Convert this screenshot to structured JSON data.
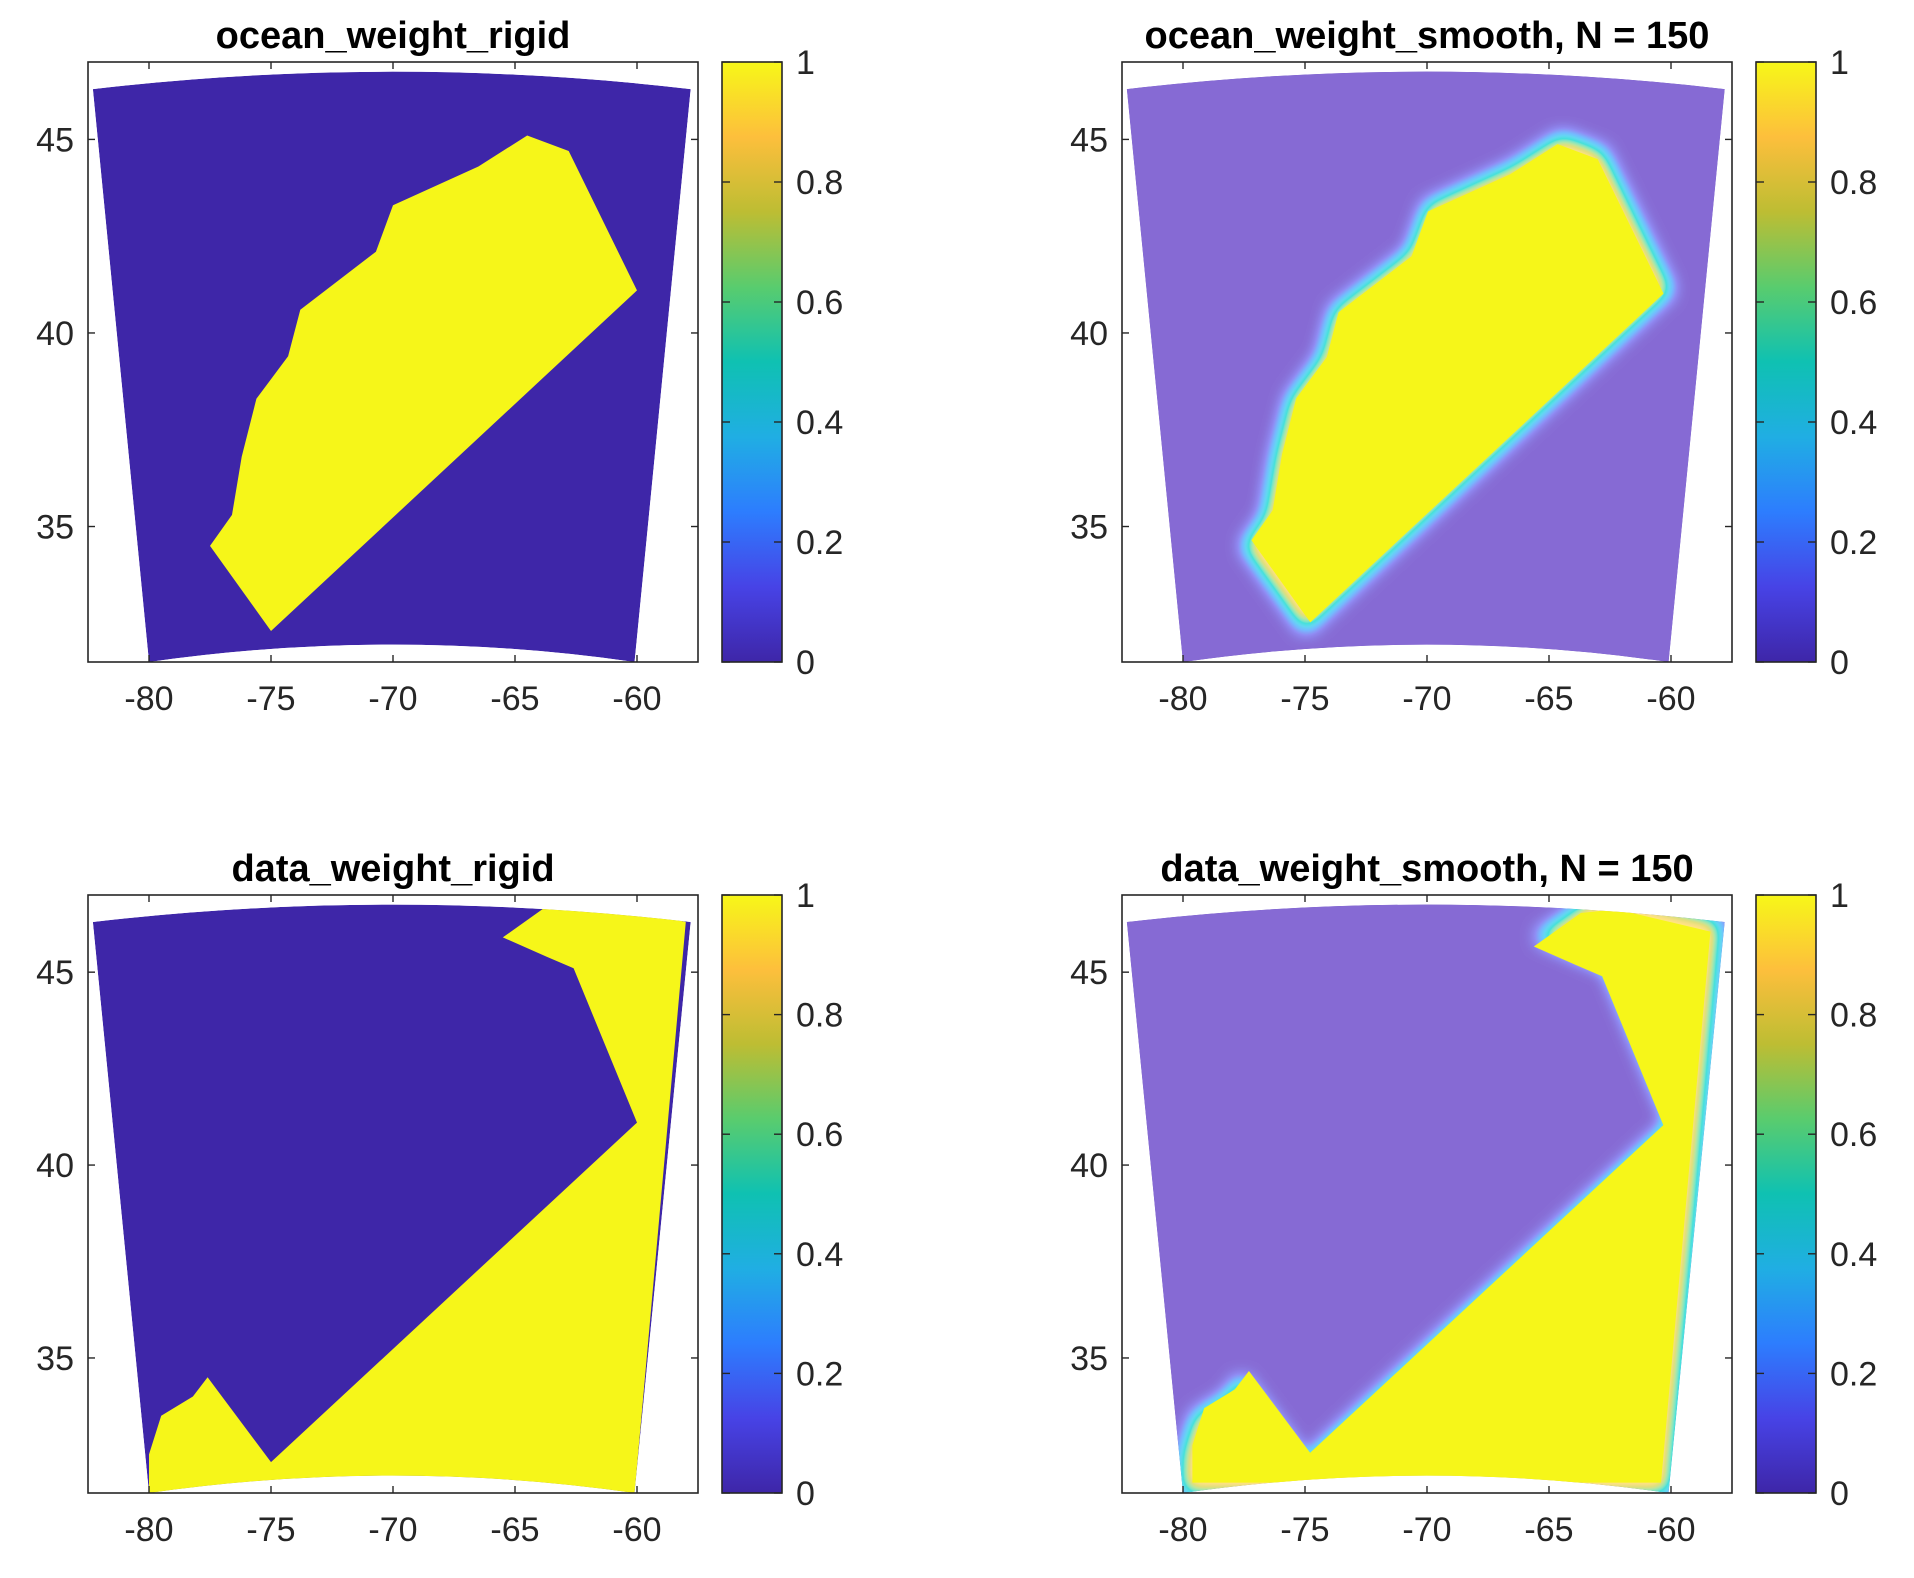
{
  "figure": {
    "colormap": [
      "#3e26a8",
      "#4743e6",
      "#2d7dfe",
      "#20aee3",
      "#0fc1b2",
      "#59cc6e",
      "#bdbd33",
      "#fdbf3c",
      "#f7f718"
    ],
    "ocean_color": "#3e26a8",
    "land_color": "#f6f619"
  },
  "chart_data": [
    {
      "type": "heatmap",
      "panel": "top-left",
      "title": "ocean_weight_rigid",
      "x_ticks": [
        "-80",
        "-75",
        "-70",
        "-65",
        "-60"
      ],
      "y_ticks": [
        "45",
        "40",
        "35"
      ],
      "xlim": [
        -82.5,
        -57.5
      ],
      "ylim": [
        31.5,
        47
      ],
      "colorbar": {
        "ticks": [
          "1",
          "0.8",
          "0.6",
          "0.4",
          "0.2",
          "0"
        ],
        "range": [
          0,
          1
        ]
      },
      "background": 0,
      "region_value": 1,
      "region": [
        [
          -77.5,
          34.5
        ],
        [
          -75,
          32.3
        ],
        [
          -60,
          41.1
        ],
        [
          -62.8,
          44.7
        ],
        [
          -64.5,
          45.1
        ],
        [
          -66.5,
          44.3
        ],
        [
          -70,
          43.3
        ],
        [
          -70.7,
          42.1
        ],
        [
          -73.8,
          40.6
        ],
        [
          -74.3,
          39.4
        ],
        [
          -75.6,
          38.3
        ],
        [
          -76.2,
          36.8
        ],
        [
          -76.6,
          35.3
        ]
      ],
      "smooth": false
    },
    {
      "type": "heatmap",
      "panel": "top-right",
      "title": "ocean_weight_smooth, N = 150",
      "x_ticks": [
        "-80",
        "-75",
        "-70",
        "-65",
        "-60"
      ],
      "y_ticks": [
        "45",
        "40",
        "35"
      ],
      "xlim": [
        -82.5,
        -57.5
      ],
      "ylim": [
        31.5,
        47
      ],
      "colorbar": {
        "ticks": [
          "1",
          "0.8",
          "0.6",
          "0.4",
          "0.2",
          "0"
        ],
        "range": [
          0,
          1
        ]
      },
      "background": 0,
      "region_value": 1,
      "region": [
        [
          -77.5,
          34.5
        ],
        [
          -75,
          32.3
        ],
        [
          -60,
          41.1
        ],
        [
          -62.8,
          44.7
        ],
        [
          -64.5,
          45.1
        ],
        [
          -66.5,
          44.3
        ],
        [
          -70,
          43.3
        ],
        [
          -70.7,
          42.1
        ],
        [
          -73.8,
          40.6
        ],
        [
          -74.3,
          39.4
        ],
        [
          -75.6,
          38.3
        ],
        [
          -76.2,
          36.8
        ],
        [
          -76.6,
          35.3
        ]
      ],
      "smooth": true
    },
    {
      "type": "heatmap",
      "panel": "bottom-left",
      "title": "data_weight_rigid",
      "x_ticks": [
        "-80",
        "-75",
        "-70",
        "-65",
        "-60"
      ],
      "y_ticks": [
        "45",
        "40",
        "35"
      ],
      "xlim": [
        -82.5,
        -57.5
      ],
      "ylim": [
        31.5,
        47
      ],
      "colorbar": {
        "ticks": [
          "1",
          "0.8",
          "0.6",
          "0.4",
          "0.2",
          "0"
        ],
        "range": [
          0,
          1
        ]
      },
      "background": 0,
      "region_value": 1,
      "region": [
        [
          -80,
          32.5
        ],
        [
          -79.5,
          33.5
        ],
        [
          -78.2,
          34
        ],
        [
          -77.6,
          34.5
        ],
        [
          -75,
          32.3
        ],
        [
          -60,
          41.1
        ],
        [
          -62.6,
          45.1
        ],
        [
          -63.7,
          45.4
        ],
        [
          -65.5,
          45.9
        ],
        [
          -63.5,
          46.8
        ],
        [
          -62,
          46.9
        ],
        [
          -58,
          46.3
        ],
        [
          -60.1,
          31.5
        ],
        [
          -80,
          31.5
        ]
      ],
      "smooth": false
    },
    {
      "type": "heatmap",
      "panel": "bottom-right",
      "title": "data_weight_smooth, N = 150",
      "x_ticks": [
        "-80",
        "-75",
        "-70",
        "-65",
        "-60"
      ],
      "y_ticks": [
        "45",
        "40",
        "35"
      ],
      "xlim": [
        -82.5,
        -57.5
      ],
      "ylim": [
        31.5,
        47
      ],
      "colorbar": {
        "ticks": [
          "1",
          "0.8",
          "0.6",
          "0.4",
          "0.2",
          "0"
        ],
        "range": [
          0,
          1
        ]
      },
      "background": 0,
      "region_value": 1,
      "region": [
        [
          -80,
          32.5
        ],
        [
          -79.5,
          33.5
        ],
        [
          -78.2,
          34
        ],
        [
          -77.6,
          34.5
        ],
        [
          -75,
          32.3
        ],
        [
          -60,
          41.1
        ],
        [
          -62.6,
          45.1
        ],
        [
          -63.7,
          45.4
        ],
        [
          -65.5,
          45.9
        ],
        [
          -63.5,
          46.8
        ],
        [
          -62,
          46.9
        ],
        [
          -58,
          46.3
        ],
        [
          -60.1,
          31.5
        ],
        [
          -80,
          31.5
        ]
      ],
      "smooth": true
    }
  ]
}
